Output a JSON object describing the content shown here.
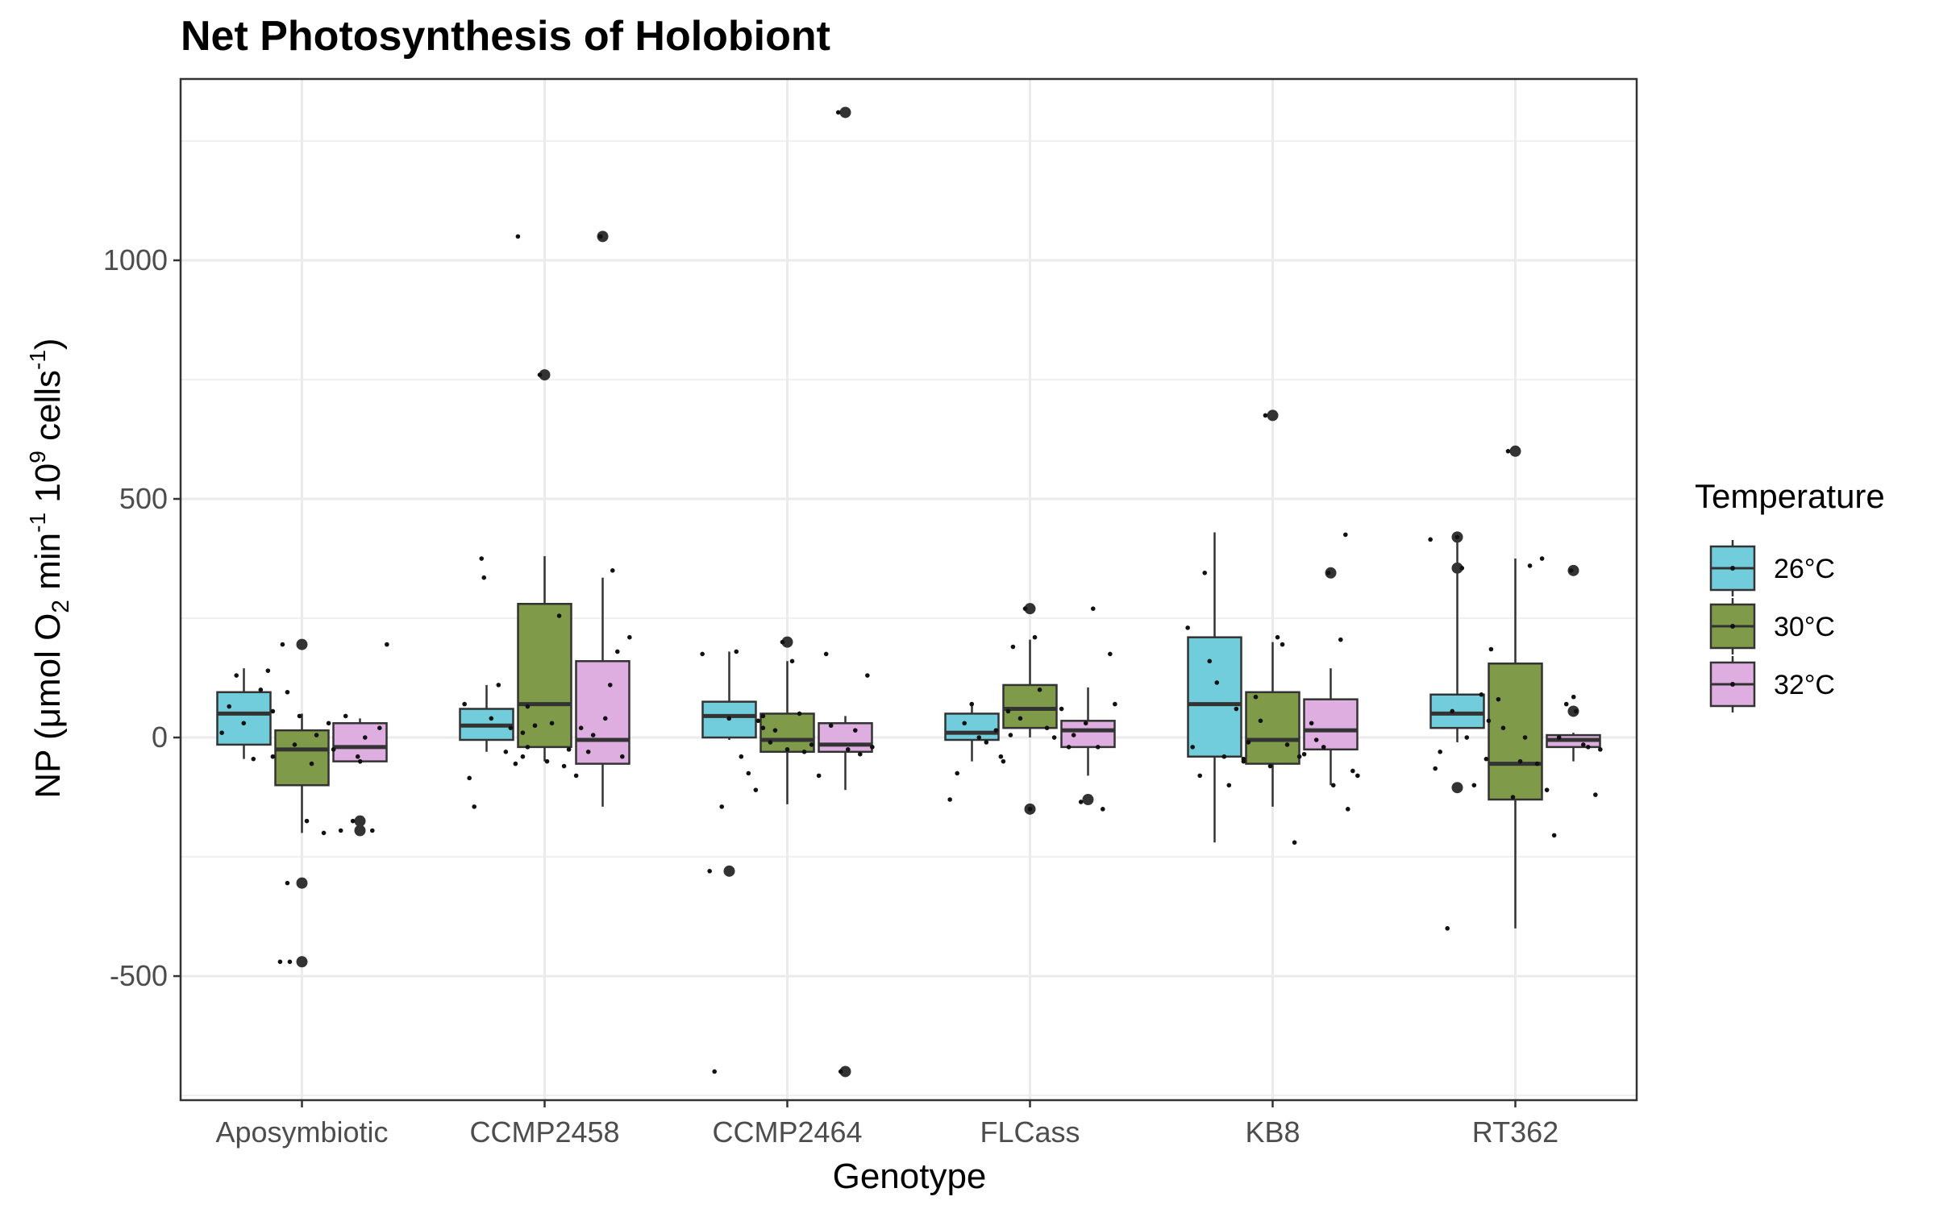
{
  "chart_data": {
    "type": "box",
    "title": "Net Photosynthesis of Holobiont",
    "xlabel": "Genotype",
    "ylabel": {
      "prefix": "NP (μmol O",
      "o2_subscript": "2",
      "min_text": " min",
      "min_exp": "-1",
      "ten_text": " 10",
      "ten_exp": "9",
      "cells_text": " cells",
      "cells_exp": "-1",
      "suffix": ")"
    },
    "ylim": [
      -760,
      1380
    ],
    "y_ticks": [
      -500,
      0,
      500,
      1000
    ],
    "y_tick_labels": [
      "-500",
      "0",
      "500",
      "1000"
    ],
    "grid": true,
    "legend": {
      "title": "Temperature",
      "position": "right"
    },
    "categories": [
      "Aposymbiotic",
      "CCMP2458",
      "CCMP2464",
      "FLCass",
      "KB8",
      "RT362"
    ],
    "series": [
      {
        "name": "26°C",
        "color": "#71cddb",
        "boxes": [
          {
            "q1": -15,
            "median": 50,
            "q3": 95,
            "lower": -45,
            "upper": 145,
            "outliers": [],
            "points": [
              [
                -0.33,
                10
              ],
              [
                -0.3,
                65
              ],
              [
                -0.27,
                130
              ],
              [
                -0.24,
                30
              ],
              [
                -0.2,
                -45
              ],
              [
                -0.17,
                100
              ],
              [
                -0.14,
                140
              ],
              [
                -0.12,
                55
              ],
              [
                -0.09,
                -470
              ],
              [
                -0.06,
                95
              ]
            ]
          },
          {
            "q1": -5,
            "median": 25,
            "q3": 60,
            "lower": -30,
            "upper": 110,
            "outliers": [],
            "points": [
              [
                -0.33,
                70
              ],
              [
                -0.31,
                -85
              ],
              [
                -0.29,
                -145
              ],
              [
                -0.26,
                375
              ],
              [
                -0.25,
                335
              ],
              [
                -0.22,
                40
              ],
              [
                -0.19,
                110
              ],
              [
                -0.16,
                -30
              ],
              [
                -0.14,
                20
              ],
              [
                -0.11,
                1050
              ],
              [
                -0.09,
                -40
              ],
              [
                -0.07,
                65
              ]
            ]
          },
          {
            "q1": 0,
            "median": 45,
            "q3": 75,
            "lower": -5,
            "upper": 180,
            "outliers": [
              -280
            ],
            "points": [
              [
                -0.35,
                175
              ],
              [
                -0.32,
                -280
              ],
              [
                -0.3,
                -700
              ],
              [
                -0.27,
                -145
              ],
              [
                -0.24,
                40
              ],
              [
                -0.21,
                180
              ],
              [
                -0.19,
                -40
              ],
              [
                -0.16,
                -75
              ],
              [
                -0.13,
                -110
              ],
              [
                -0.1,
                45
              ]
            ]
          },
          {
            "q1": -5,
            "median": 10,
            "q3": 50,
            "lower": -50,
            "upper": 70,
            "outliers": [],
            "points": [
              [
                -0.33,
                -130
              ],
              [
                -0.3,
                -75
              ],
              [
                -0.27,
                30
              ],
              [
                -0.24,
                70
              ],
              [
                -0.21,
                0
              ],
              [
                -0.18,
                -10
              ],
              [
                -0.14,
                15
              ],
              [
                -0.11,
                -50
              ],
              [
                -0.08,
                5
              ]
            ]
          },
          {
            "q1": -40,
            "median": 70,
            "q3": 210,
            "lower": -220,
            "upper": 430,
            "outliers": [],
            "points": [
              [
                -0.35,
                230
              ],
              [
                -0.33,
                -20
              ],
              [
                -0.3,
                -80
              ],
              [
                -0.28,
                345
              ],
              [
                -0.26,
                160
              ],
              [
                -0.23,
                115
              ],
              [
                -0.2,
                -40
              ],
              [
                -0.18,
                -100
              ],
              [
                -0.15,
                60
              ],
              [
                -0.12,
                -50
              ]
            ]
          },
          {
            "q1": 20,
            "median": 50,
            "q3": 90,
            "lower": -10,
            "upper": 420,
            "outliers": [
              420,
              355,
              -105
            ],
            "points": [
              [
                -0.35,
                415
              ],
              [
                -0.33,
                -65
              ],
              [
                -0.31,
                -30
              ],
              [
                -0.28,
                -400
              ],
              [
                -0.26,
                55
              ],
              [
                -0.24,
                420
              ],
              [
                -0.22,
                355
              ],
              [
                -0.2,
                0
              ],
              [
                -0.17,
                -100
              ],
              [
                -0.14,
                90
              ],
              [
                -0.11,
                35
              ]
            ]
          }
        ]
      },
      {
        "name": "30°C",
        "color": "#7f9a48",
        "boxes": [
          {
            "q1": -100,
            "median": -25,
            "q3": 15,
            "lower": -200,
            "upper": 50,
            "outliers": [
              195,
              -305,
              -470
            ],
            "points": [
              [
                -0.12,
                -40
              ],
              [
                -0.08,
                195
              ],
              [
                -0.06,
                -305
              ],
              [
                -0.05,
                -470
              ],
              [
                -0.03,
                -15
              ],
              [
                -0.01,
                45
              ],
              [
                0.02,
                -175
              ],
              [
                0.04,
                -55
              ],
              [
                0.06,
                5
              ],
              [
                0.09,
                -200
              ],
              [
                0.11,
                30
              ]
            ]
          },
          {
            "q1": -20,
            "median": 70,
            "q3": 280,
            "lower": -50,
            "upper": 380,
            "outliers": [
              760
            ],
            "points": [
              [
                -0.12,
                -55
              ],
              [
                -0.09,
                10
              ],
              [
                -0.07,
                -20
              ],
              [
                -0.04,
                25
              ],
              [
                -0.02,
                760
              ],
              [
                0.01,
                -50
              ],
              [
                0.03,
                30
              ],
              [
                0.06,
                255
              ],
              [
                0.08,
                -60
              ],
              [
                0.1,
                -25
              ]
            ]
          },
          {
            "q1": -30,
            "median": -5,
            "q3": 50,
            "lower": -140,
            "upper": 160,
            "outliers": [
              200
            ],
            "points": [
              [
                -0.12,
                35
              ],
              [
                -0.1,
                20
              ],
              [
                -0.07,
                -10
              ],
              [
                -0.05,
                15
              ],
              [
                -0.02,
                200
              ],
              [
                0.0,
                -25
              ],
              [
                0.02,
                160
              ],
              [
                0.05,
                50
              ],
              [
                0.07,
                -30
              ],
              [
                0.1,
                -15
              ]
            ]
          },
          {
            "q1": 20,
            "median": 60,
            "q3": 110,
            "lower": 0,
            "upper": 205,
            "outliers": [
              270,
              -150
            ],
            "points": [
              [
                -0.12,
                -40
              ],
              [
                -0.09,
                55
              ],
              [
                -0.07,
                190
              ],
              [
                -0.04,
                40
              ],
              [
                -0.02,
                270
              ],
              [
                0.0,
                -150
              ],
              [
                0.02,
                210
              ],
              [
                0.04,
                100
              ],
              [
                0.07,
                20
              ],
              [
                0.1,
                0
              ]
            ]
          },
          {
            "q1": -55,
            "median": -5,
            "q3": 95,
            "lower": -145,
            "upper": 200,
            "outliers": [
              675
            ],
            "points": [
              [
                -0.12,
                -45
              ],
              [
                -0.1,
                -10
              ],
              [
                -0.07,
                85
              ],
              [
                -0.05,
                35
              ],
              [
                -0.03,
                675
              ],
              [
                -0.01,
                -60
              ],
              [
                0.02,
                210
              ],
              [
                0.04,
                195
              ],
              [
                0.06,
                -15
              ],
              [
                0.09,
                -220
              ],
              [
                0.11,
                -40
              ]
            ]
          },
          {
            "q1": -130,
            "median": -55,
            "q3": 155,
            "lower": -400,
            "upper": 375,
            "outliers": [
              600
            ],
            "points": [
              [
                -0.12,
                -45
              ],
              [
                -0.1,
                185
              ],
              [
                -0.07,
                80
              ],
              [
                -0.05,
                20
              ],
              [
                -0.03,
                600
              ],
              [
                -0.01,
                -125
              ],
              [
                0.02,
                -50
              ],
              [
                0.04,
                0
              ],
              [
                0.06,
                360
              ],
              [
                0.09,
                -55
              ],
              [
                0.11,
                375
              ]
            ]
          }
        ]
      },
      {
        "name": "32°C",
        "color": "#dfaee0",
        "boxes": [
          {
            "q1": -50,
            "median": -20,
            "q3": 30,
            "lower": -55,
            "upper": 40,
            "outliers": [
              -175,
              -195
            ],
            "points": [
              [
                0.13,
                -25
              ],
              [
                0.16,
                -195
              ],
              [
                0.18,
                45
              ],
              [
                0.21,
                -175
              ],
              [
                0.24,
                -50
              ],
              [
                0.26,
                0
              ],
              [
                0.29,
                -195
              ],
              [
                0.32,
                20
              ],
              [
                0.35,
                195
              ],
              [
                0.23,
                -40
              ]
            ]
          },
          {
            "q1": -55,
            "median": -5,
            "q3": 160,
            "lower": -145,
            "upper": 335,
            "outliers": [
              1050
            ],
            "points": [
              [
                0.13,
                -80
              ],
              [
                0.15,
                20
              ],
              [
                0.18,
                -30
              ],
              [
                0.2,
                5
              ],
              [
                0.23,
                1050
              ],
              [
                0.25,
                40
              ],
              [
                0.28,
                350
              ],
              [
                0.3,
                180
              ],
              [
                0.32,
                -40
              ],
              [
                0.35,
                210
              ],
              [
                0.27,
                110
              ]
            ]
          },
          {
            "q1": -30,
            "median": -15,
            "q3": 30,
            "lower": -110,
            "upper": 45,
            "outliers": [
              1310,
              -700
            ],
            "points": [
              [
                0.13,
                -80
              ],
              [
                0.16,
                175
              ],
              [
                0.18,
                25
              ],
              [
                0.21,
                1310
              ],
              [
                0.22,
                -700
              ],
              [
                0.25,
                -25
              ],
              [
                0.28,
                15
              ],
              [
                0.3,
                -35
              ],
              [
                0.33,
                130
              ],
              [
                0.35,
                -20
              ]
            ]
          },
          {
            "q1": -20,
            "median": 15,
            "q3": 35,
            "lower": -80,
            "upper": 105,
            "outliers": [
              -130
            ],
            "points": [
              [
                0.13,
                60
              ],
              [
                0.16,
                -20
              ],
              [
                0.18,
                5
              ],
              [
                0.21,
                -135
              ],
              [
                0.23,
                30
              ],
              [
                0.26,
                270
              ],
              [
                0.28,
                -20
              ],
              [
                0.3,
                -150
              ],
              [
                0.33,
                175
              ],
              [
                0.35,
                70
              ]
            ]
          },
          {
            "q1": -25,
            "median": 15,
            "q3": 80,
            "lower": -100,
            "upper": 145,
            "outliers": [
              345
            ],
            "points": [
              [
                0.13,
                -35
              ],
              [
                0.16,
                30
              ],
              [
                0.18,
                -5
              ],
              [
                0.21,
                -20
              ],
              [
                0.23,
                345
              ],
              [
                0.25,
                -100
              ],
              [
                0.28,
                205
              ],
              [
                0.3,
                425
              ],
              [
                0.33,
                -70
              ],
              [
                0.35,
                -80
              ],
              [
                0.31,
                -150
              ]
            ]
          },
          {
            "q1": -20,
            "median": -5,
            "q3": 5,
            "lower": -50,
            "upper": 10,
            "outliers": [
              350,
              55
            ],
            "points": [
              [
                0.13,
                -110
              ],
              [
                0.16,
                -205
              ],
              [
                0.18,
                0
              ],
              [
                0.21,
                70
              ],
              [
                0.23,
                350
              ],
              [
                0.25,
                55
              ],
              [
                0.28,
                -15
              ],
              [
                0.3,
                -20
              ],
              [
                0.33,
                -120
              ],
              [
                0.35,
                -25
              ],
              [
                0.24,
                85
              ]
            ]
          }
        ]
      }
    ]
  }
}
